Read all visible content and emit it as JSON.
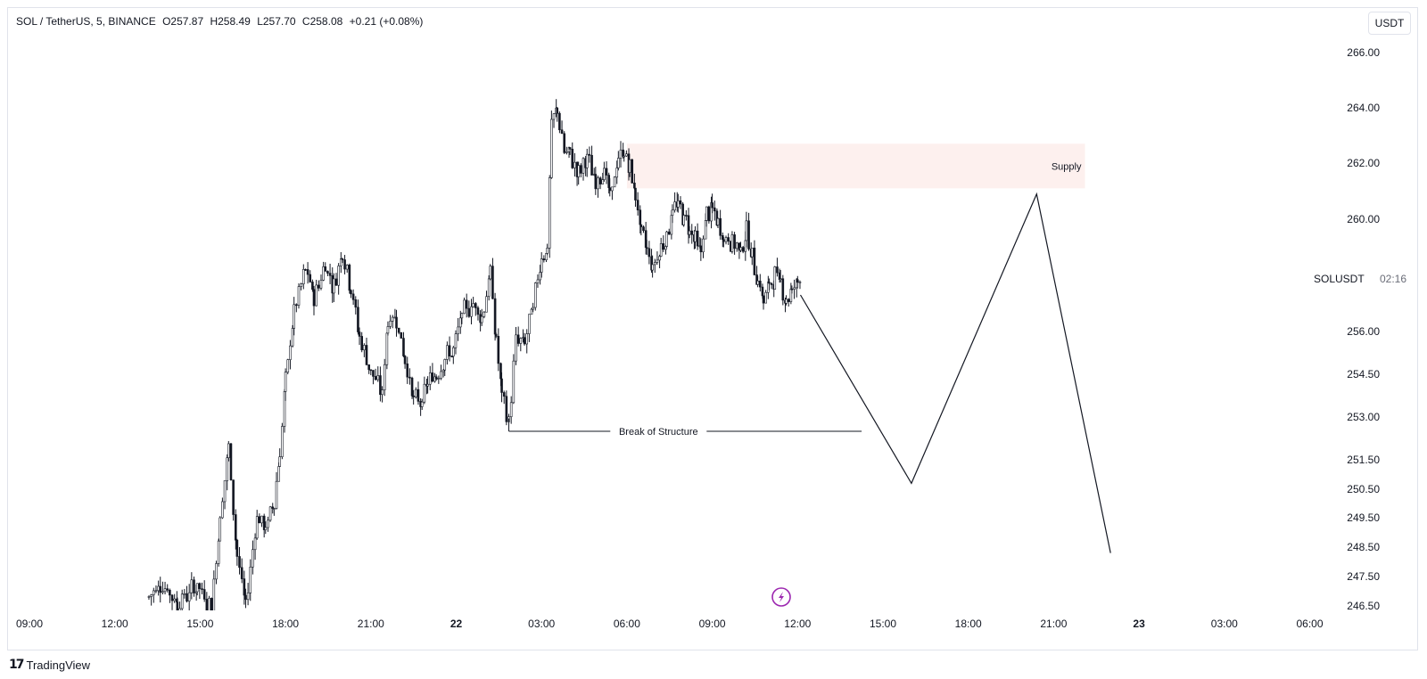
{
  "header": {
    "symbol": "SOL / TetherUS, 5, BINANCE",
    "open": "O257.87",
    "high": "H258.49",
    "low": "L257.70",
    "close": "C258.08",
    "change": "+0.21 (+0.08%)"
  },
  "toolbar": {
    "currency": "USDT"
  },
  "price_scale": {
    "symbol": "SOLUSDT",
    "countdown": "02:16"
  },
  "footer": {
    "brand": "TradingView"
  },
  "colors": {
    "candle": "#131722",
    "supply_zone": "#fdf0ee",
    "grid_text": "#131722",
    "accent_icon": "#9c27b0"
  },
  "icons": {
    "lightning": "lightning-icon",
    "logo": "tradingview-logo-icon"
  },
  "chart_data": {
    "type": "candlestick",
    "title": "",
    "xlabel": "",
    "ylabel": "",
    "grid": false,
    "ylim": [
      246.5,
      267.0
    ],
    "y_ticks": [
      {
        "label": "266.00",
        "value": 266.0
      },
      {
        "label": "264.00",
        "value": 264.0
      },
      {
        "label": "262.00",
        "value": 262.0
      },
      {
        "label": "260.00",
        "value": 260.0
      },
      {
        "label": "256.00",
        "value": 256.0
      },
      {
        "label": "254.50",
        "value": 254.5
      },
      {
        "label": "253.00",
        "value": 253.0
      },
      {
        "label": "251.50",
        "value": 251.5
      },
      {
        "label": "250.50",
        "value": 250.5
      },
      {
        "label": "249.50",
        "value": 249.5
      },
      {
        "label": "248.50",
        "value": 248.5
      },
      {
        "label": "247.50",
        "value": 247.5
      },
      {
        "label": "246.50",
        "value": 246.5
      }
    ],
    "x_ticks": [
      {
        "label": "09:00",
        "hour": 0,
        "bold": false
      },
      {
        "label": "12:00",
        "hour": 3,
        "bold": false
      },
      {
        "label": "15:00",
        "hour": 6,
        "bold": false
      },
      {
        "label": "18:00",
        "hour": 9,
        "bold": false
      },
      {
        "label": "21:00",
        "hour": 12,
        "bold": false
      },
      {
        "label": "22",
        "hour": 15,
        "bold": true
      },
      {
        "label": "03:00",
        "hour": 18,
        "bold": false
      },
      {
        "label": "06:00",
        "hour": 21,
        "bold": false
      },
      {
        "label": "09:00",
        "hour": 24,
        "bold": false
      },
      {
        "label": "12:00",
        "hour": 27,
        "bold": false
      },
      {
        "label": "15:00",
        "hour": 30,
        "bold": false
      },
      {
        "label": "18:00",
        "hour": 33,
        "bold": false
      },
      {
        "label": "21:00",
        "hour": 36,
        "bold": false
      },
      {
        "label": "23",
        "hour": 39,
        "bold": true
      },
      {
        "label": "03:00",
        "hour": 42,
        "bold": false
      },
      {
        "label": "06:00",
        "hour": 45,
        "bold": false
      }
    ],
    "price_path": [
      [
        4.2,
        246.8
      ],
      [
        4.6,
        247.3
      ],
      [
        5.2,
        246.6
      ],
      [
        5.9,
        247.2
      ],
      [
        6.4,
        246.4
      ],
      [
        6.7,
        249.5
      ],
      [
        7.0,
        251.9
      ],
      [
        7.3,
        248.2
      ],
      [
        7.6,
        246.5
      ],
      [
        8.0,
        249.6
      ],
      [
        8.3,
        249.1
      ],
      [
        8.6,
        250.1
      ],
      [
        8.8,
        251.7
      ],
      [
        9.0,
        254.2
      ],
      [
        9.3,
        256.7
      ],
      [
        9.7,
        258.2
      ],
      [
        10.0,
        257.2
      ],
      [
        10.4,
        258.4
      ],
      [
        10.7,
        257.6
      ],
      [
        11.0,
        258.9
      ],
      [
        11.3,
        257.6
      ],
      [
        11.6,
        255.8
      ],
      [
        12.0,
        254.6
      ],
      [
        12.4,
        253.8
      ],
      [
        12.6,
        256.4
      ],
      [
        12.9,
        256.5
      ],
      [
        13.2,
        255.0
      ],
      [
        13.5,
        253.6
      ],
      [
        13.8,
        253.5
      ],
      [
        14.0,
        254.2
      ],
      [
        14.3,
        254.5
      ],
      [
        14.6,
        255.1
      ],
      [
        14.9,
        255.3
      ],
      [
        15.2,
        256.6
      ],
      [
        15.6,
        257.0
      ],
      [
        15.9,
        256.5
      ],
      [
        16.2,
        258.1
      ],
      [
        16.4,
        255.7
      ],
      [
        16.6,
        253.8
      ],
      [
        16.85,
        252.8
      ],
      [
        17.1,
        255.7
      ],
      [
        17.4,
        255.6
      ],
      [
        17.7,
        256.9
      ],
      [
        18.0,
        258.7
      ],
      [
        18.2,
        258.9
      ],
      [
        18.35,
        263.4
      ],
      [
        18.55,
        263.9
      ],
      [
        18.8,
        262.4
      ],
      [
        19.0,
        262.3
      ],
      [
        19.3,
        261.6
      ],
      [
        19.6,
        262.2
      ],
      [
        19.9,
        261.3
      ],
      [
        20.2,
        261.8
      ],
      [
        20.4,
        260.8
      ],
      [
        20.7,
        262.1
      ],
      [
        20.9,
        262.4
      ],
      [
        21.1,
        261.8
      ],
      [
        21.3,
        260.9
      ],
      [
        21.5,
        259.5
      ],
      [
        21.7,
        259.0
      ],
      [
        21.9,
        258.3
      ],
      [
        22.2,
        259.0
      ],
      [
        22.4,
        259.4
      ],
      [
        22.6,
        260.3
      ],
      [
        22.8,
        260.5
      ],
      [
        23.0,
        260.1
      ],
      [
        23.2,
        259.7
      ],
      [
        23.4,
        259.3
      ],
      [
        23.6,
        258.8
      ],
      [
        23.8,
        260.2
      ],
      [
        24.0,
        260.3
      ],
      [
        24.2,
        259.8
      ],
      [
        24.4,
        259.3
      ],
      [
        24.7,
        259.2
      ],
      [
        25.0,
        258.9
      ],
      [
        25.2,
        259.6
      ],
      [
        25.4,
        258.6
      ],
      [
        25.6,
        257.9
      ],
      [
        25.8,
        257.1
      ],
      [
        26.0,
        257.6
      ],
      [
        26.2,
        258.0
      ],
      [
        26.4,
        257.8
      ],
      [
        26.6,
        257.1
      ],
      [
        26.8,
        257.5
      ],
      [
        27.0,
        257.8
      ],
      [
        27.1,
        258.08
      ]
    ],
    "annotations": [
      {
        "type": "zone",
        "label": "Supply",
        "x_start": 21.0,
        "x_end": 37.1,
        "y_bottom": 261.1,
        "y_top": 262.7
      },
      {
        "type": "level",
        "label": "Break of Structure",
        "x_start": 16.85,
        "x_end": 29.25,
        "y": 252.5
      },
      {
        "type": "projection",
        "points": [
          [
            27.1,
            257.3
          ],
          [
            31.0,
            250.7
          ],
          [
            35.4,
            260.9
          ],
          [
            38.0,
            248.3
          ]
        ]
      }
    ]
  }
}
